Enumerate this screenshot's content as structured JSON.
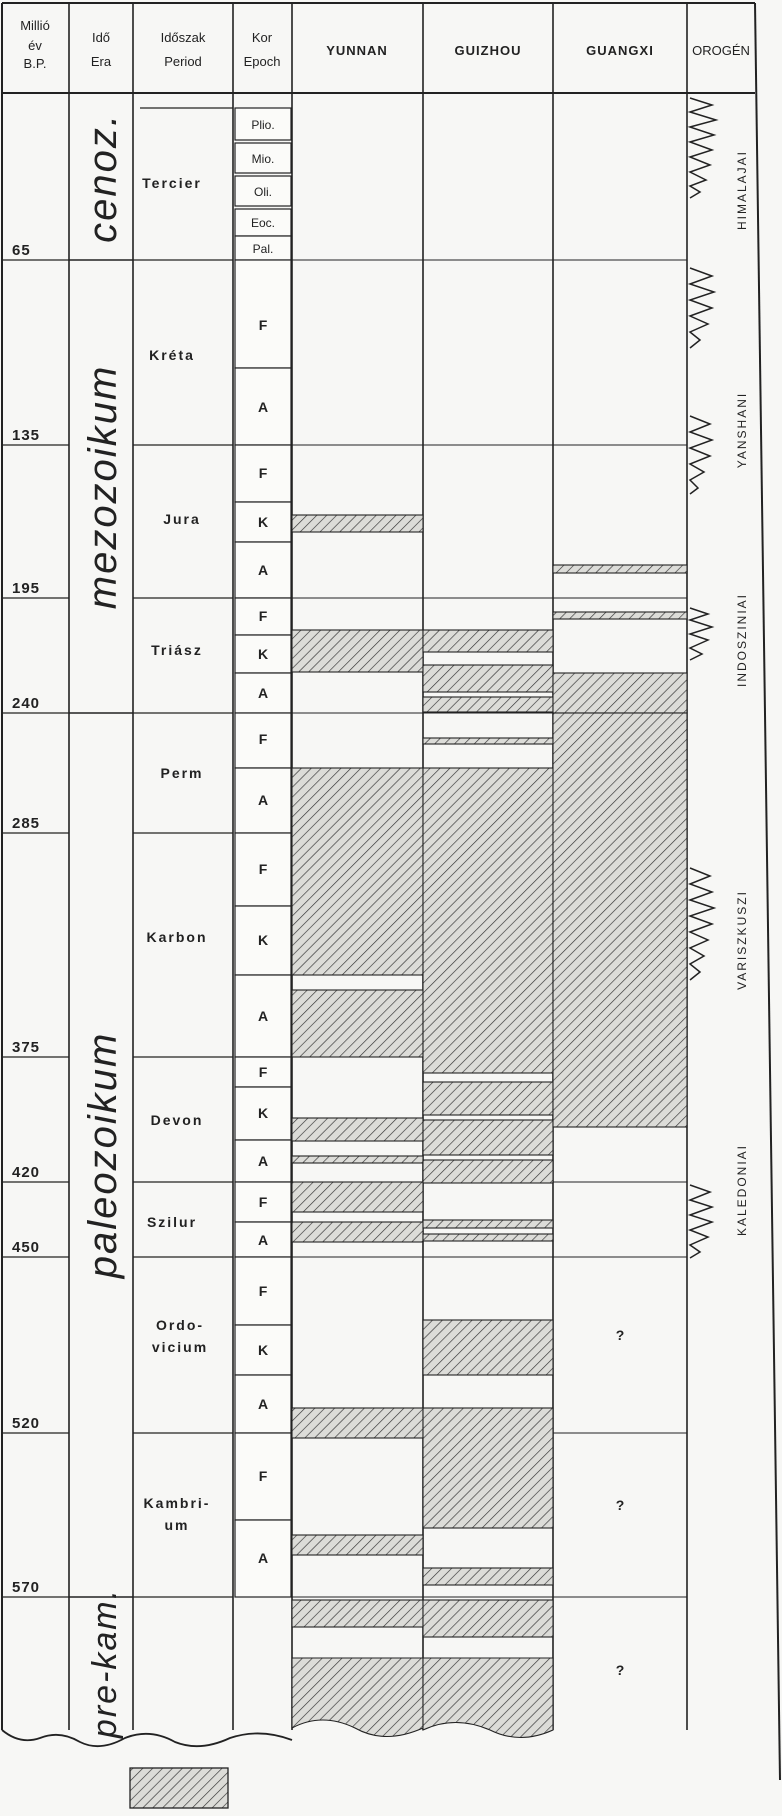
{
  "headers": {
    "age": [
      "Millió",
      "év",
      "B.P."
    ],
    "era": [
      "Idő",
      "Era"
    ],
    "period": [
      "Időszak",
      "Period"
    ],
    "epoch": [
      "Kor",
      "Epoch"
    ],
    "yunnan": "YUNNAN",
    "guizhou": "GUIZHOU",
    "guangxi": "GUANGXI",
    "orogen": "OROGÉN"
  },
  "ages": [
    "65",
    "135",
    "195",
    "240",
    "285",
    "375",
    "420",
    "450",
    "520",
    "570"
  ],
  "eras": [
    "cenoz.",
    "mezozoikum",
    "paleozoikum",
    "pre-kam."
  ],
  "periods": [
    "Tercier",
    "Kréta",
    "Jura",
    "Triász",
    "Perm",
    "Karbon",
    "Devon",
    "Szilur",
    "Ordo-",
    "vicium",
    "Kambri-",
    "um"
  ],
  "epochs": [
    "Plio.",
    "Mio.",
    "Oli.",
    "Eoc.",
    "Pal.",
    "F",
    "A",
    "F",
    "K",
    "A",
    "F",
    "K",
    "A",
    "F",
    "A",
    "F",
    "K",
    "A",
    "F",
    "K",
    "A",
    "F",
    "A",
    "F",
    "K",
    "A",
    "F",
    "A"
  ],
  "orogenies": [
    "HIMALAJAI",
    "YANSHANI",
    "INDOSZINIAI",
    "VARISZKUSZI",
    "KALEDONIAI"
  ],
  "unknown_marks": [
    "?",
    "?",
    "?"
  ],
  "legend": "hatched"
}
